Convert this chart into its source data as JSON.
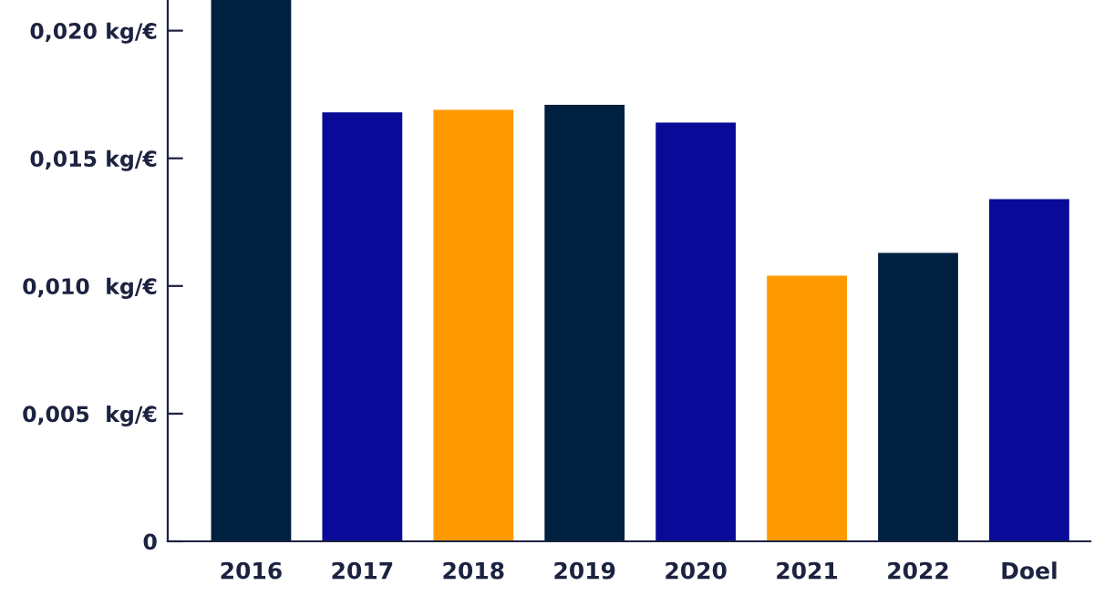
{
  "chart_data": {
    "type": "bar",
    "categories": [
      "2016",
      "2017",
      "2018",
      "2019",
      "2020",
      "2021",
      "2022",
      "Doel"
    ],
    "values": [
      0.0212,
      0.0168,
      0.0169,
      0.0171,
      0.0164,
      0.0104,
      0.0113,
      0.0134
    ],
    "colors": [
      "#00203f",
      "#0a0a99",
      "#ff9900",
      "#00203f",
      "#0a0a99",
      "#ff9900",
      "#00203f",
      "#0a0a99"
    ],
    "ylim": [
      0,
      0.0212
    ],
    "yticks": [
      {
        "value": 0,
        "label": "0"
      },
      {
        "value": 0.005,
        "label": "0,005  kg/€"
      },
      {
        "value": 0.01,
        "label": "0,010  kg/€"
      },
      {
        "value": 0.015,
        "label": "0,015 kg/€"
      },
      {
        "value": 0.02,
        "label": "0,020 kg/€"
      }
    ],
    "grid": false
  }
}
